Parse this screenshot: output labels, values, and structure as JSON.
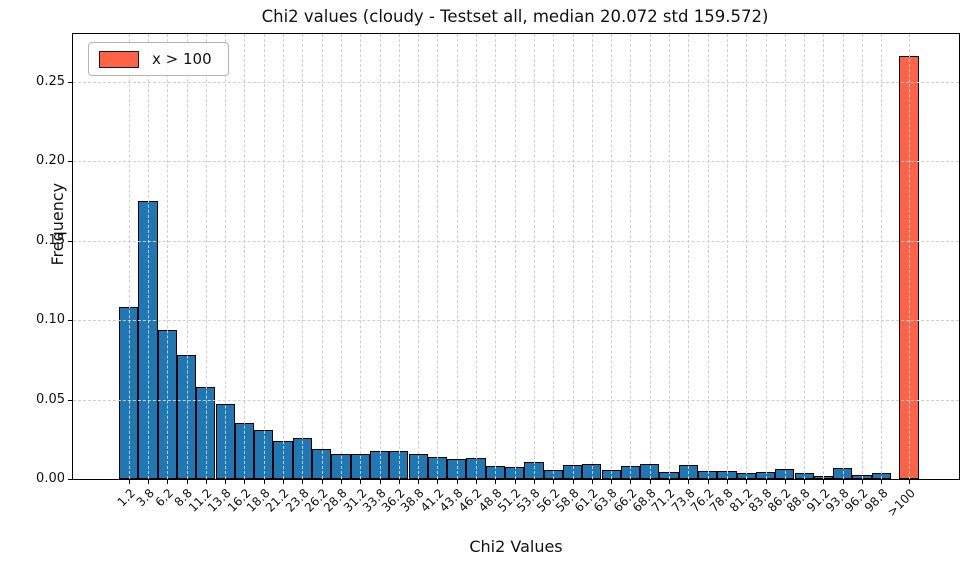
{
  "title": "Chi2 values (cloudy - Testset all, median 20.072 std 159.572)",
  "legend": {
    "label": "x > 100"
  },
  "axes": {
    "xlabel": "Chi2 Values",
    "ylabel": "Frequency"
  },
  "colors": {
    "bar_default": "#1f77b4",
    "bar_overflow": "#ff6347",
    "edge": "#000000",
    "grid": "#cfcfcf"
  },
  "chart_data": {
    "type": "bar",
    "title": "Chi2 values (cloudy - Testset all, median 20.072 std 159.572)",
    "xlabel": "Chi2 Values",
    "ylabel": "Frequency",
    "ylim": [
      0,
      0.28
    ],
    "yticks": [
      0.0,
      0.05,
      0.1,
      0.15,
      0.2,
      0.25
    ],
    "grid": true,
    "legend_position": "upper-left",
    "categories": [
      "1.2",
      "3.8",
      "6.2",
      "8.8",
      "11.2",
      "13.8",
      "16.2",
      "18.8",
      "21.2",
      "23.8",
      "26.2",
      "28.8",
      "31.2",
      "33.8",
      "36.2",
      "38.8",
      "41.2",
      "43.8",
      "46.2",
      "48.8",
      "51.2",
      "53.8",
      "56.2",
      "58.8",
      "61.2",
      "63.8",
      "66.2",
      "68.8",
      "71.2",
      "73.8",
      "76.2",
      "78.8",
      "81.2",
      "83.8",
      "86.2",
      "88.8",
      "91.2",
      "93.8",
      "96.2",
      "98.8",
      ">100"
    ],
    "values": [
      0.108,
      0.175,
      0.094,
      0.078,
      0.058,
      0.047,
      0.035,
      0.031,
      0.024,
      0.026,
      0.019,
      0.016,
      0.016,
      0.0175,
      0.0175,
      0.016,
      0.014,
      0.0125,
      0.0135,
      0.0085,
      0.0075,
      0.011,
      0.0057,
      0.0088,
      0.0094,
      0.0058,
      0.008,
      0.0094,
      0.0045,
      0.0086,
      0.0048,
      0.0052,
      0.004,
      0.0044,
      0.006,
      0.0038,
      0.002,
      0.0068,
      0.0027,
      0.0037,
      0.266
    ],
    "overflow_category": ">100",
    "overflow_value": 0.266
  }
}
